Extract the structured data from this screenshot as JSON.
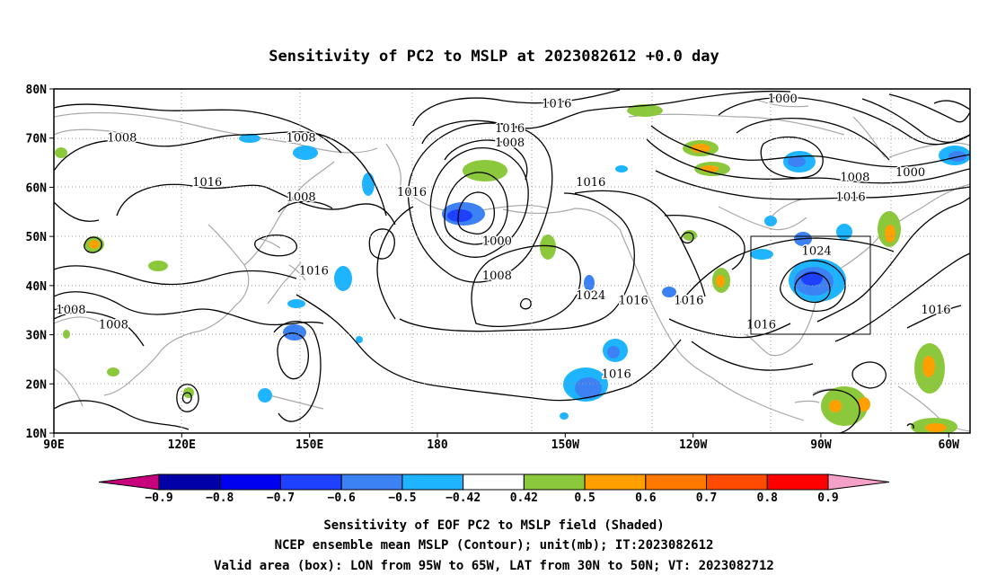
{
  "title": "Sensitivity of PC2 to MSLP at 2023082612 +0.0 day",
  "map": {
    "lat_labels": [
      "80N",
      "70N",
      "60N",
      "50N",
      "40N",
      "30N",
      "20N",
      "10N"
    ],
    "lon_labels": [
      "90E",
      "120E",
      "150E",
      "180",
      "150W",
      "120W",
      "90W",
      "60W"
    ],
    "lat_range": [
      10,
      80
    ],
    "lon_range_deg_east": [
      90,
      305
    ],
    "grid": "dotted",
    "valid_box": {
      "lon_west": -95,
      "lon_east": -65,
      "lat_south": 30,
      "lat_north": 50
    },
    "contour_labels": [
      {
        "text": "1016",
        "lon": -152,
        "lat": 77
      },
      {
        "text": "1000",
        "lon": -99,
        "lat": 78
      },
      {
        "text": "1016",
        "lon": -163,
        "lat": 72
      },
      {
        "text": "1008",
        "lon": -163,
        "lat": 69
      },
      {
        "text": "1008",
        "lon": 106,
        "lat": 70
      },
      {
        "text": "1008",
        "lon": 148,
        "lat": 70
      },
      {
        "text": "1016",
        "lon": 126,
        "lat": 61
      },
      {
        "text": "1008",
        "lon": 148,
        "lat": 58
      },
      {
        "text": "1016",
        "lon": 174,
        "lat": 59
      },
      {
        "text": "1016",
        "lon": -144,
        "lat": 61
      },
      {
        "text": "1000",
        "lon": -166,
        "lat": 49
      },
      {
        "text": "1008",
        "lon": -166,
        "lat": 42
      },
      {
        "text": "1024",
        "lon": -144,
        "lat": 38
      },
      {
        "text": "1016",
        "lon": 151,
        "lat": 43
      },
      {
        "text": "1016",
        "lon": -134,
        "lat": 37
      },
      {
        "text": "1016",
        "lon": -121,
        "lat": 37
      },
      {
        "text": "1016",
        "lon": -104,
        "lat": 32
      },
      {
        "text": "1024",
        "lon": -91,
        "lat": 47
      },
      {
        "text": "1016",
        "lon": -83,
        "lat": 58
      },
      {
        "text": "1008",
        "lon": -82,
        "lat": 62
      },
      {
        "text": "1000",
        "lon": -69,
        "lat": 63
      },
      {
        "text": "1016",
        "lon": -63,
        "lat": 35
      },
      {
        "text": "1008",
        "lon": 94,
        "lat": 35
      },
      {
        "text": "1008",
        "lon": 104,
        "lat": 32
      },
      {
        "text": "1016",
        "lon": -138,
        "lat": 22
      }
    ]
  },
  "colorbar": {
    "labels": [
      "-0.9",
      "-0.8",
      "-0.7",
      "-0.6",
      "-0.5",
      "-0.42",
      "0.42",
      "0.5",
      "0.6",
      "0.7",
      "0.8",
      "0.9"
    ],
    "colors": {
      "below": "#c8007c",
      "bins": [
        "#0000a8",
        "#0000f0",
        "#1e40ff",
        "#3c82f4",
        "#1eb4ff",
        "#ffffff",
        "#8cc83c",
        "#ffa000",
        "#ff7800",
        "#ff4b00",
        "#ff0000"
      ],
      "above": "#f5a0c8"
    }
  },
  "captions": [
    "Sensitivity of EOF PC2 to MSLP field (Shaded)",
    "NCEP ensemble mean MSLP (Contour); unit(mb); IT:2023082612",
    "Valid area (box): LON from 95W to 65W, LAT from 30N to 50N; VT: 2023082712"
  ]
}
